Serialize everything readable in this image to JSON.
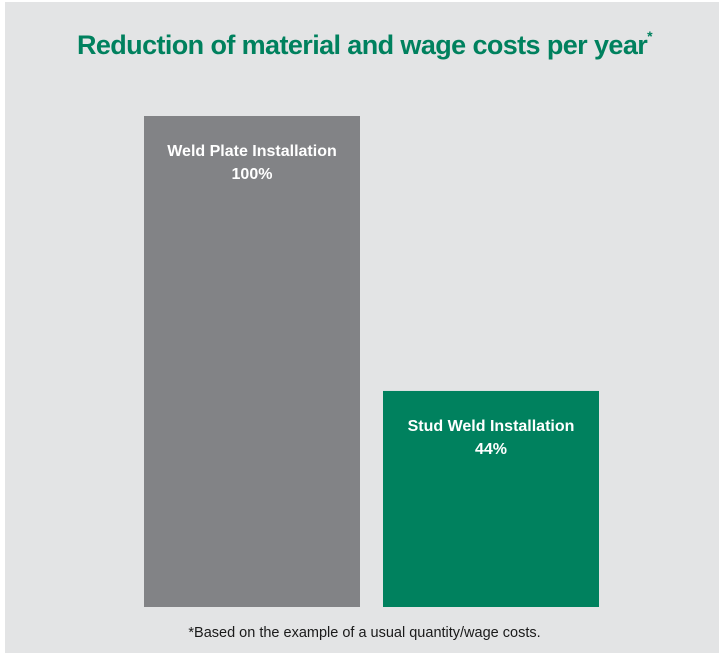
{
  "chart_data": {
    "type": "bar",
    "title": "Reduction of material and wage costs per year",
    "title_marker": "*",
    "categories": [
      "Weld Plate Installation",
      "Stud Weld Installation"
    ],
    "values": [
      100,
      44
    ],
    "value_labels": [
      "100%",
      "44%"
    ],
    "ylim": [
      0,
      100
    ],
    "grid": false,
    "legend": "none",
    "footnote": "*Based on the example of a usual quantity/wage costs."
  },
  "colors": {
    "background": "#e3e4e5",
    "title": "#00815e",
    "bars": [
      "#828386",
      "#00815e"
    ]
  }
}
